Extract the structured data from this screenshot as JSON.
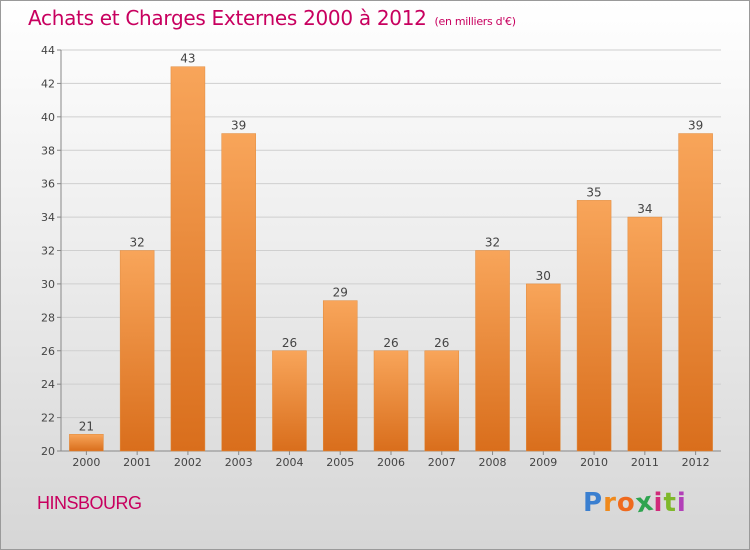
{
  "title": "Achats et Charges Externes 2000 à 2012",
  "unit": "(en milliers d'€)",
  "commune": "HINSBOURG",
  "logo": {
    "letters": [
      "P",
      "r",
      "o",
      "x",
      "i",
      "t",
      "i"
    ],
    "colors": [
      "#3a7fd0",
      "#f08a1c",
      "#ef6a1e",
      "#2ea44f",
      "#d12a7a",
      "#7fb82a",
      "#b23fb8"
    ]
  },
  "colors": {
    "accent": "#c8005f",
    "bar_light": "#f8a55a",
    "bar_dark": "#d96e1c"
  },
  "chart_data": {
    "type": "bar",
    "categories": [
      "2000",
      "2001",
      "2002",
      "2003",
      "2004",
      "2005",
      "2006",
      "2007",
      "2008",
      "2009",
      "2010",
      "2011",
      "2012"
    ],
    "values": [
      21,
      32,
      43,
      39,
      26,
      29,
      26,
      26,
      32,
      30,
      35,
      34,
      39
    ],
    "ylim": [
      20,
      44
    ],
    "yticks": [
      20,
      22,
      24,
      26,
      28,
      30,
      32,
      34,
      36,
      38,
      40,
      42,
      44
    ],
    "grid": true,
    "title": "Achats et Charges Externes 2000 à 2012",
    "xlabel": "",
    "ylabel": ""
  }
}
